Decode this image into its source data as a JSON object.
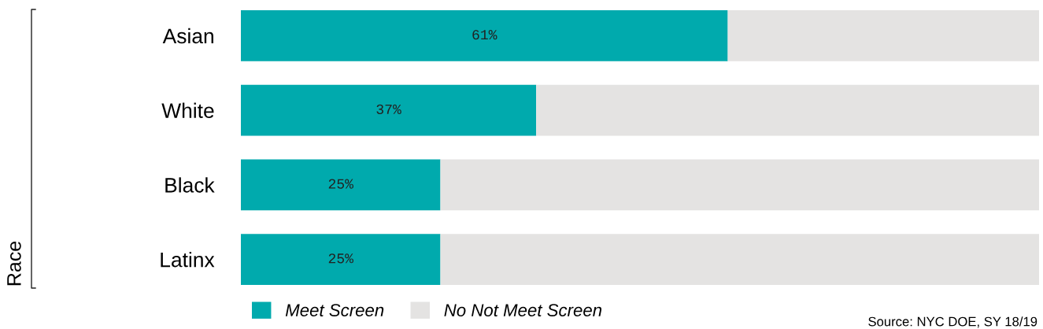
{
  "chart_data": {
    "type": "bar",
    "orientation": "horizontal",
    "stacked": true,
    "categories": [
      "Asian",
      "White",
      "Black",
      "Latinx"
    ],
    "series": [
      {
        "name": "Meet Screen",
        "color": "#00aaad",
        "values": [
          61,
          37,
          25,
          25
        ],
        "value_labels": [
          "61%",
          "37%",
          "25%",
          "25%"
        ]
      },
      {
        "name": "No Not Meet Screen",
        "color": "#e4e3e2",
        "values": [
          39,
          63,
          75,
          75
        ]
      }
    ],
    "xlim": [
      0,
      100
    ],
    "legend": "bottom left",
    "tick_labels": "y",
    "annotations": [
      "Race",
      "Source: NYC DOE, SY 18/19"
    ]
  }
}
